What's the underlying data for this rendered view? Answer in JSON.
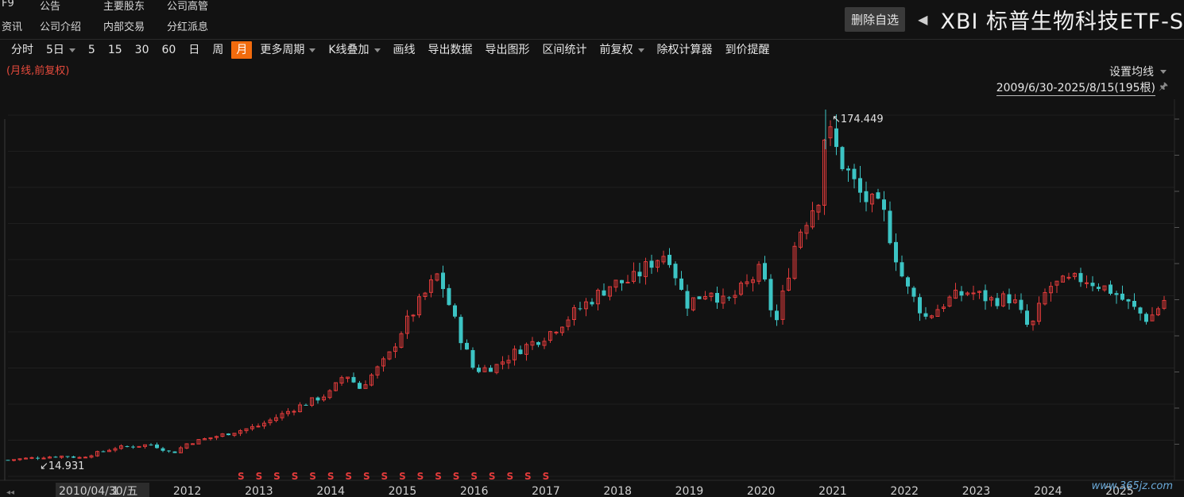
{
  "nav": {
    "row1": [
      "F9",
      "公告",
      "主要股东",
      "公司高管"
    ],
    "row2": [
      "资讯",
      "公司介绍",
      "内部交易",
      "分红派息"
    ]
  },
  "header": {
    "delete_label": "删除自选",
    "title": "XBI 标普生物科技ETF-S"
  },
  "toolbar": {
    "items": [
      {
        "label": "分时"
      },
      {
        "label": "5日",
        "dropdown": true
      },
      {
        "label": "5"
      },
      {
        "label": "15"
      },
      {
        "label": "30"
      },
      {
        "label": "60"
      },
      {
        "label": "日"
      },
      {
        "label": "周"
      },
      {
        "label": "月",
        "active": true
      },
      {
        "label": "更多周期",
        "dropdown": true
      },
      {
        "label": "K线叠加",
        "dropdown": true
      },
      {
        "label": "画线"
      },
      {
        "label": "导出数据"
      },
      {
        "label": "导出图形"
      },
      {
        "label": "区间统计"
      },
      {
        "label": "前复权",
        "dropdown": true
      },
      {
        "label": "除权计算器"
      },
      {
        "label": "到价提醒"
      }
    ]
  },
  "chart_meta": {
    "subtitle": "(月线,前复权)",
    "ma_setting": "设置均线",
    "range": "2009/6/30-2025/8/15(195根)",
    "max_label": "174.449",
    "min_label": "14.931",
    "cursor_date": "2010/04/30/五"
  },
  "colors": {
    "up": "#e23b3b",
    "down": "#3cc4c4",
    "accent": "#f26b0d",
    "background": "#121212"
  },
  "chart_data": {
    "type": "candlestick",
    "x_ticks": [
      "1",
      "2012",
      "2013",
      "2014",
      "2015",
      "2016",
      "2017",
      "2018",
      "2019",
      "2020",
      "2021",
      "2022",
      "2023",
      "2024",
      "2025"
    ],
    "x_tick_dates": [
      2011.0,
      2012.0,
      2013.0,
      2014.0,
      2015.0,
      2016.0,
      2017.0,
      2018.0,
      2019.0,
      2020.0,
      2021.0,
      2022.0,
      2023.0,
      2024.0,
      2025.0
    ],
    "y_range": [
      8,
      182
    ],
    "max": {
      "date": 2020.9,
      "value": 174.449
    },
    "min": {
      "date": 2009.75,
      "value": 14.931
    },
    "dividend_marker": "S",
    "dividend_dates": [
      2012.75,
      2013.0,
      2013.25,
      2013.5,
      2013.75,
      2014.0,
      2014.25,
      2014.5,
      2014.75,
      2015.0,
      2015.25,
      2015.5,
      2015.75,
      2016.0,
      2016.25,
      2016.5,
      2016.75,
      2017.0
    ],
    "key_points": [
      {
        "date": 2009.5,
        "value": 15.5
      },
      {
        "date": 2010.0,
        "value": 16.8
      },
      {
        "date": 2010.3,
        "value": 17.3
      },
      {
        "date": 2010.5,
        "value": 16.5
      },
      {
        "date": 2011.0,
        "value": 21.0
      },
      {
        "date": 2011.5,
        "value": 22.5
      },
      {
        "date": 2011.8,
        "value": 18.5
      },
      {
        "date": 2012.0,
        "value": 23.0
      },
      {
        "date": 2012.5,
        "value": 27.0
      },
      {
        "date": 2013.0,
        "value": 31.0
      },
      {
        "date": 2013.5,
        "value": 39.0
      },
      {
        "date": 2014.0,
        "value": 46.0
      },
      {
        "date": 2014.2,
        "value": 55.0
      },
      {
        "date": 2014.4,
        "value": 48.0
      },
      {
        "date": 2014.8,
        "value": 62.0
      },
      {
        "date": 2015.0,
        "value": 75.0
      },
      {
        "date": 2015.3,
        "value": 90.0
      },
      {
        "date": 2015.5,
        "value": 100.0
      },
      {
        "date": 2015.8,
        "value": 72.0
      },
      {
        "date": 2016.0,
        "value": 56.0
      },
      {
        "date": 2016.3,
        "value": 58.0
      },
      {
        "date": 2016.6,
        "value": 65.0
      },
      {
        "date": 2017.0,
        "value": 72.0
      },
      {
        "date": 2017.5,
        "value": 85.0
      },
      {
        "date": 2017.9,
        "value": 95.0
      },
      {
        "date": 2018.2,
        "value": 97.0
      },
      {
        "date": 2018.5,
        "value": 106.0
      },
      {
        "date": 2018.7,
        "value": 110.0
      },
      {
        "date": 2018.95,
        "value": 86.0
      },
      {
        "date": 2019.3,
        "value": 93.0
      },
      {
        "date": 2019.5,
        "value": 86.0
      },
      {
        "date": 2019.8,
        "value": 95.0
      },
      {
        "date": 2020.0,
        "value": 102.0
      },
      {
        "date": 2020.2,
        "value": 76.0
      },
      {
        "date": 2020.5,
        "value": 117.0
      },
      {
        "date": 2020.8,
        "value": 135.0
      },
      {
        "date": 2020.9,
        "value": 168.0
      },
      {
        "date": 2021.1,
        "value": 152.0
      },
      {
        "date": 2021.4,
        "value": 135.0
      },
      {
        "date": 2021.7,
        "value": 128.0
      },
      {
        "date": 2022.0,
        "value": 95.0
      },
      {
        "date": 2022.3,
        "value": 80.0
      },
      {
        "date": 2022.6,
        "value": 88.0
      },
      {
        "date": 2022.9,
        "value": 92.0
      },
      {
        "date": 2023.2,
        "value": 88.0
      },
      {
        "date": 2023.5,
        "value": 89.0
      },
      {
        "date": 2023.75,
        "value": 74.0
      },
      {
        "date": 2024.0,
        "value": 94.0
      },
      {
        "date": 2024.5,
        "value": 98.0
      },
      {
        "date": 2024.9,
        "value": 92.0
      },
      {
        "date": 2025.2,
        "value": 84.0
      },
      {
        "date": 2025.4,
        "value": 79.0
      },
      {
        "date": 2025.62,
        "value": 88.0
      }
    ]
  },
  "watermark": "www.365jz.com"
}
